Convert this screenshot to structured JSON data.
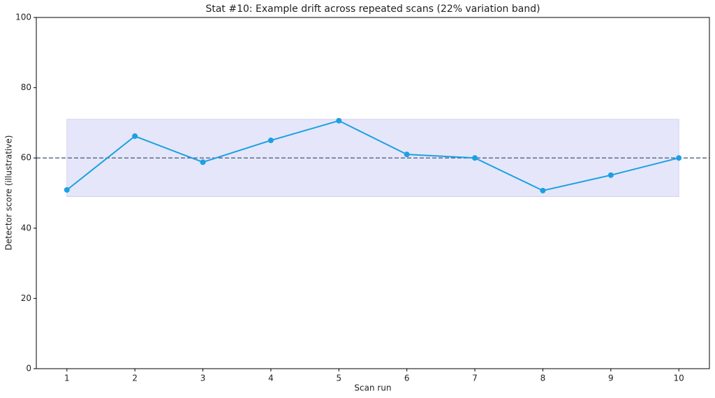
{
  "chart_data": {
    "type": "line",
    "title": "Stat #10: Example drift across repeated scans (22% variation band)",
    "x_label": "Scan run",
    "y_label": "Detector score (illustrative)",
    "x": [
      1,
      2,
      3,
      4,
      5,
      6,
      7,
      8,
      9,
      10
    ],
    "values": [
      50.9,
      66.2,
      58.8,
      65.0,
      70.6,
      61.0,
      60.0,
      50.7,
      55.1,
      60.0
    ],
    "color": "#1ba1e2",
    "band": [
      49,
      71
    ],
    "band_color": "#e6e6fa",
    "reference_line": 60,
    "reference_color": "#5a6f8f",
    "xlim": [
      0.55,
      10.45
    ],
    "xticks": [
      1,
      2,
      3,
      4,
      5,
      6,
      7,
      8,
      9,
      10
    ],
    "ylim": [
      0,
      100
    ],
    "yticks": [
      0,
      20,
      40,
      60,
      80,
      100
    ]
  }
}
